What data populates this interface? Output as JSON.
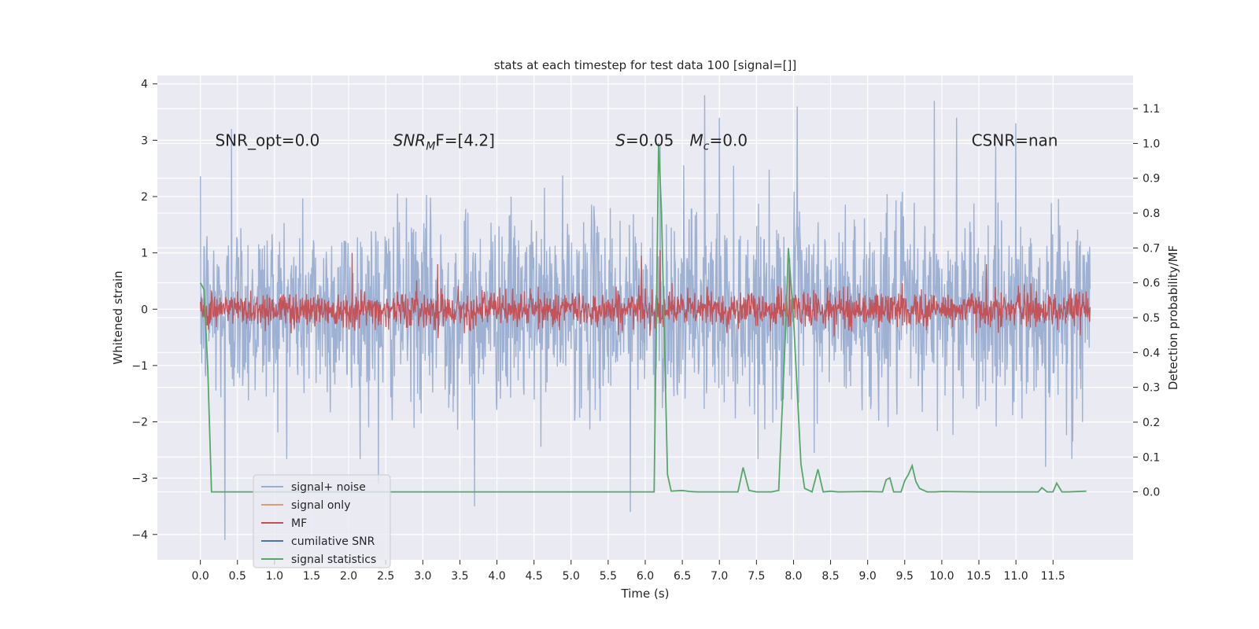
{
  "chart_data": {
    "type": "line",
    "title": "stats at each timestep for test data 100 [signal=[]]",
    "xlabel": "Time (s)",
    "ylabel": "Whitened strain",
    "y2label": "Detection probability/MF",
    "xlim": [
      -0.58,
      12.58
    ],
    "ylim": [
      -4.45,
      4.15
    ],
    "y2lim": [
      -0.195,
      1.195
    ],
    "xticks": [
      0.0,
      0.5,
      1.0,
      1.5,
      2.0,
      2.5,
      3.0,
      3.5,
      4.0,
      4.5,
      5.0,
      5.5,
      6.0,
      6.5,
      7.0,
      7.5,
      8.0,
      8.5,
      9.0,
      9.5,
      10.0,
      10.5,
      11.0,
      11.5
    ],
    "xtick_labels": [
      "0.0",
      "0.5",
      "1.0",
      "1.5",
      "2.0",
      "2.5",
      "3.0",
      "3.5",
      "4.0",
      "4.5",
      "5.0",
      "5.5",
      "6.0",
      "6.5",
      "7.0",
      "7.5",
      "8.0",
      "8.5",
      "9.0",
      "9.5",
      "10.0",
      "10.5",
      "11.0",
      "11.5"
    ],
    "yticks": [
      -4,
      -3,
      -2,
      -1,
      0,
      1,
      2,
      3,
      4
    ],
    "ytick_labels": [
      "−4",
      "−3",
      "−2",
      "−1",
      "0",
      "1",
      "2",
      "3",
      "4"
    ],
    "y2ticks": [
      0.0,
      0.1,
      0.2,
      0.3,
      0.4,
      0.5,
      0.6,
      0.7,
      0.8,
      0.9,
      1.0,
      1.1
    ],
    "y2tick_labels": [
      "0.0",
      "0.1",
      "0.2",
      "0.3",
      "0.4",
      "0.5",
      "0.6",
      "0.7",
      "0.8",
      "0.9",
      "1.0",
      "1.1"
    ],
    "grid": true,
    "legend_position": "lower-left",
    "annotations": [
      {
        "text": "SNR_opt=0.0",
        "x": 0.2,
        "y": 3.0
      },
      {
        "text": "SNR",
        "sub": "M",
        "tail": "F=[4.2]",
        "x": 2.6,
        "y": 3.0
      },
      {
        "text": "S",
        "tail": "=0.05",
        "x": 5.6,
        "y": 3.0
      },
      {
        "text": "M",
        "sub": "c",
        "tail": "=0.0",
        "x": 6.6,
        "y": 3.0
      },
      {
        "text": "CSNR=nan",
        "x": 10.4,
        "y": 3.0
      }
    ],
    "series": [
      {
        "name": "signal+ noise",
        "color": "#9aaed0",
        "axis": "left",
        "x_range": [
          0.0,
          12.0
        ],
        "samples": 2000,
        "envelope_typical": [
          -1.4,
          1.7
        ],
        "peaks": [
          {
            "x": 0.33,
            "y": -4.1
          },
          {
            "x": 0.42,
            "y": 3.2
          },
          {
            "x": 3.7,
            "y": -3.5
          },
          {
            "x": 5.8,
            "y": -3.6
          },
          {
            "x": 6.8,
            "y": 3.8
          },
          {
            "x": 7.0,
            "y": 3.4
          },
          {
            "x": 8.05,
            "y": 3.6
          },
          {
            "x": 9.9,
            "y": 3.7
          },
          {
            "x": 10.2,
            "y": 3.4
          },
          {
            "x": 11.0,
            "y": 3.3
          },
          {
            "x": 6.2,
            "y": 2.9
          },
          {
            "x": 2.4,
            "y": -3.1
          },
          {
            "x": 11.4,
            "y": -2.8
          }
        ]
      },
      {
        "name": "signal only",
        "color": "#dd9d7c",
        "axis": "left",
        "values": []
      },
      {
        "name": "MF",
        "color": "#c44e52",
        "axis": "left",
        "x_range": [
          0.0,
          12.0
        ],
        "samples": 2000,
        "envelope_typical": [
          -0.35,
          0.45
        ],
        "peaks": [
          {
            "x": 2.05,
            "y": 1.0
          },
          {
            "x": 5.95,
            "y": 0.95
          },
          {
            "x": 6.2,
            "y": 1.05
          },
          {
            "x": 7.95,
            "y": 0.9
          },
          {
            "x": 3.2,
            "y": 0.8
          },
          {
            "x": 10.6,
            "y": 0.8
          }
        ]
      },
      {
        "name": "cumilative SNR",
        "color": "#4c72b0",
        "axis": "right",
        "values": []
      },
      {
        "name": "signal statistics",
        "color": "#55a868",
        "axis": "right",
        "x": [
          0.0,
          0.05,
          0.1,
          0.15,
          0.5,
          1.0,
          2.0,
          3.0,
          4.0,
          5.0,
          6.0,
          6.12,
          6.18,
          6.22,
          6.3,
          6.35,
          6.5,
          6.6,
          6.7,
          7.0,
          7.25,
          7.32,
          7.4,
          7.5,
          7.7,
          7.8,
          7.9,
          7.93,
          8.0,
          8.1,
          8.15,
          8.25,
          8.33,
          8.4,
          8.5,
          8.6,
          9.0,
          9.2,
          9.25,
          9.3,
          9.35,
          9.4,
          9.45,
          9.5,
          9.55,
          9.6,
          9.65,
          9.7,
          9.8,
          9.9,
          10.0,
          10.5,
          11.0,
          11.3,
          11.35,
          11.42,
          11.5,
          11.55,
          11.62,
          11.7,
          11.95
        ],
        "y": [
          0.6,
          0.58,
          0.35,
          0.0,
          0.0,
          0.0,
          0.0,
          0.0,
          0.0,
          0.0,
          0.0,
          0.0,
          1.0,
          0.8,
          0.05,
          0.002,
          0.004,
          0.001,
          0.0,
          0.0,
          0.0,
          0.07,
          0.004,
          0.0,
          0.0,
          0.004,
          0.5,
          0.7,
          0.5,
          0.08,
          0.01,
          0.0,
          0.065,
          0.0,
          0.002,
          0.0,
          0.001,
          0.0,
          0.035,
          0.04,
          0.0,
          0.0,
          0.0,
          0.032,
          0.05,
          0.075,
          0.03,
          0.01,
          0.0,
          0.0,
          0.001,
          0.0,
          0.0,
          0.0,
          0.012,
          0.0,
          0.0,
          0.025,
          0.0,
          0.0,
          0.002
        ]
      }
    ]
  }
}
